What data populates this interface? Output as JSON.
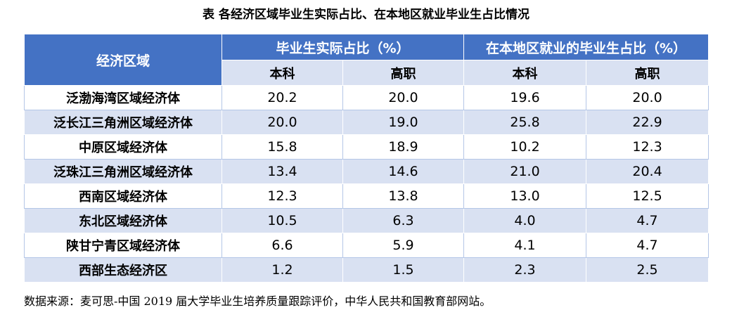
{
  "title": "表  各经济区域毕业生实际占比、在本地区就业毕业生占比情况",
  "source": "数据来源：麦可思-中国 2019 届大学毕业生培养质量跟踪评价，中华人民共和国教育部网站。",
  "chart_data": {
    "type": "table",
    "header": {
      "region": "经济区域",
      "group1": "毕业生实际占比（%）",
      "group2": "在本地区就业的毕业生占比（%）",
      "sub": [
        "本科",
        "高职",
        "本科",
        "高职"
      ]
    },
    "rows": [
      {
        "region": "泛渤海湾区域经济体",
        "values": [
          "20.2",
          "20.0",
          "19.6",
          "20.0"
        ]
      },
      {
        "region": "泛长江三角洲区域经济体",
        "values": [
          "20.0",
          "19.0",
          "25.8",
          "22.9"
        ]
      },
      {
        "region": "中原区域经济体",
        "values": [
          "15.8",
          "18.9",
          "10.2",
          "12.3"
        ]
      },
      {
        "region": "泛珠江三角洲区域经济体",
        "values": [
          "13.4",
          "14.6",
          "21.0",
          "20.4"
        ]
      },
      {
        "region": "西南区域经济体",
        "values": [
          "12.3",
          "13.8",
          "13.0",
          "12.5"
        ]
      },
      {
        "region": "东北区域经济体",
        "values": [
          "10.5",
          "6.3",
          "4.0",
          "4.7"
        ]
      },
      {
        "region": "陕甘宁青区域经济体",
        "values": [
          "6.6",
          "5.9",
          "4.1",
          "4.7"
        ]
      },
      {
        "region": "西部生态经济区",
        "values": [
          "1.2",
          "1.5",
          "2.3",
          "2.5"
        ]
      }
    ]
  }
}
